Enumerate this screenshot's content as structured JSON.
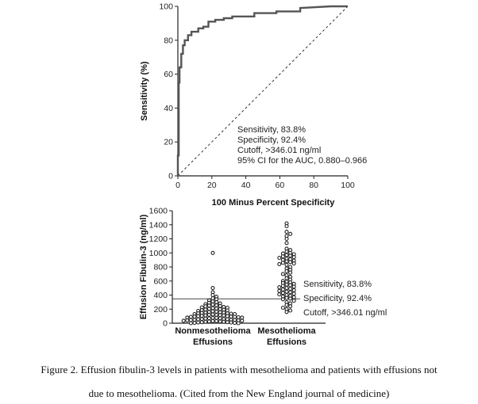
{
  "chart_data": [
    {
      "type": "line",
      "xlabel": "100 Minus Percent Specificity",
      "ylabel": "Sensitivity (%)",
      "xlim": [
        0,
        100
      ],
      "ylim": [
        0,
        100
      ],
      "x_ticks": [
        "0",
        "20",
        "40",
        "60",
        "80",
        "100"
      ],
      "y_ticks": [
        "0",
        "20",
        "40",
        "60",
        "80",
        "100"
      ],
      "series": [
        {
          "x": [
            0,
            0,
            0.5,
            0.5,
            1,
            1,
            2,
            2,
            3,
            3,
            4,
            4,
            6,
            6,
            8,
            8,
            12,
            12,
            15,
            15,
            18,
            18,
            22,
            22,
            27,
            27,
            32,
            32,
            45,
            45,
            58,
            58,
            72,
            72,
            90,
            100
          ],
          "y": [
            0,
            12,
            12,
            55,
            55,
            64,
            64,
            72,
            72,
            77,
            77,
            80,
            80,
            83,
            83,
            85,
            85,
            87,
            87,
            88,
            88,
            91,
            91,
            92,
            92,
            93,
            93,
            94,
            94,
            96,
            96,
            97,
            97,
            99,
            100,
            100
          ]
        },
        {
          "x": [
            0,
            100
          ],
          "y": [
            0,
            100
          ]
        }
      ],
      "annotations": [
        "Sensitivity, 83.8%",
        "Specificity, 92.4%",
        "Cutoff, >346.01 ng/ml",
        "95% CI for the AUC, 0.880–0.966"
      ]
    },
    {
      "type": "scatter",
      "ylabel": "Effusion Fibulin-3 (ng/ml)",
      "ylim": [
        0,
        1600
      ],
      "y_ticks": [
        "0",
        "200",
        "400",
        "600",
        "800",
        "1000",
        "1200",
        "1400",
        "1600"
      ],
      "categories": [
        [
          "Nonmesothelioma",
          "Effusions"
        ],
        [
          "Mesothelioma",
          "Effusions"
        ]
      ],
      "cutoff": 346.01,
      "series": [
        {
          "values": [
            1000,
            500,
            440,
            400,
            375,
            355,
            340,
            325,
            310,
            300,
            290,
            280,
            270,
            265,
            255,
            250,
            245,
            240,
            230,
            225,
            220,
            215,
            210,
            205,
            200,
            195,
            190,
            185,
            180,
            175,
            170,
            165,
            160,
            155,
            150,
            150,
            145,
            140,
            140,
            135,
            130,
            130,
            125,
            120,
            120,
            115,
            110,
            110,
            105,
            100,
            100,
            95,
            95,
            90,
            90,
            85,
            80,
            80,
            75,
            75,
            70,
            70,
            65,
            60,
            60,
            55,
            55,
            50,
            50,
            45,
            45,
            40,
            40,
            35,
            35,
            30,
            30,
            25,
            25,
            20,
            20,
            15,
            15,
            10,
            10,
            5,
            5,
            0,
            0
          ]
        },
        {
          "values": [
            1420,
            1380,
            1300,
            1270,
            1240,
            1200,
            1140,
            1060,
            1040,
            1020,
            1000,
            990,
            980,
            970,
            960,
            950,
            940,
            930,
            920,
            910,
            900,
            890,
            880,
            870,
            860,
            850,
            840,
            830,
            800,
            780,
            760,
            740,
            720,
            700,
            680,
            660,
            640,
            620,
            600,
            590,
            580,
            570,
            560,
            550,
            540,
            530,
            520,
            510,
            500,
            490,
            480,
            470,
            460,
            450,
            440,
            430,
            420,
            410,
            400,
            390,
            380,
            370,
            360,
            350,
            340,
            320,
            300,
            280,
            260,
            240,
            220,
            200,
            180,
            160
          ]
        }
      ],
      "annotations": [
        "Sensitivity, 83.8%",
        "Specificity, 92.4%",
        "Cutoff, >346.01 ng/ml"
      ]
    }
  ],
  "caption": {
    "line1": "Figure 2. Effusion fibulin-3 levels in patients with mesothelioma and patients with effusions not",
    "line2": "due to mesothelioma. (Cited from the New England journal of medicine)"
  }
}
